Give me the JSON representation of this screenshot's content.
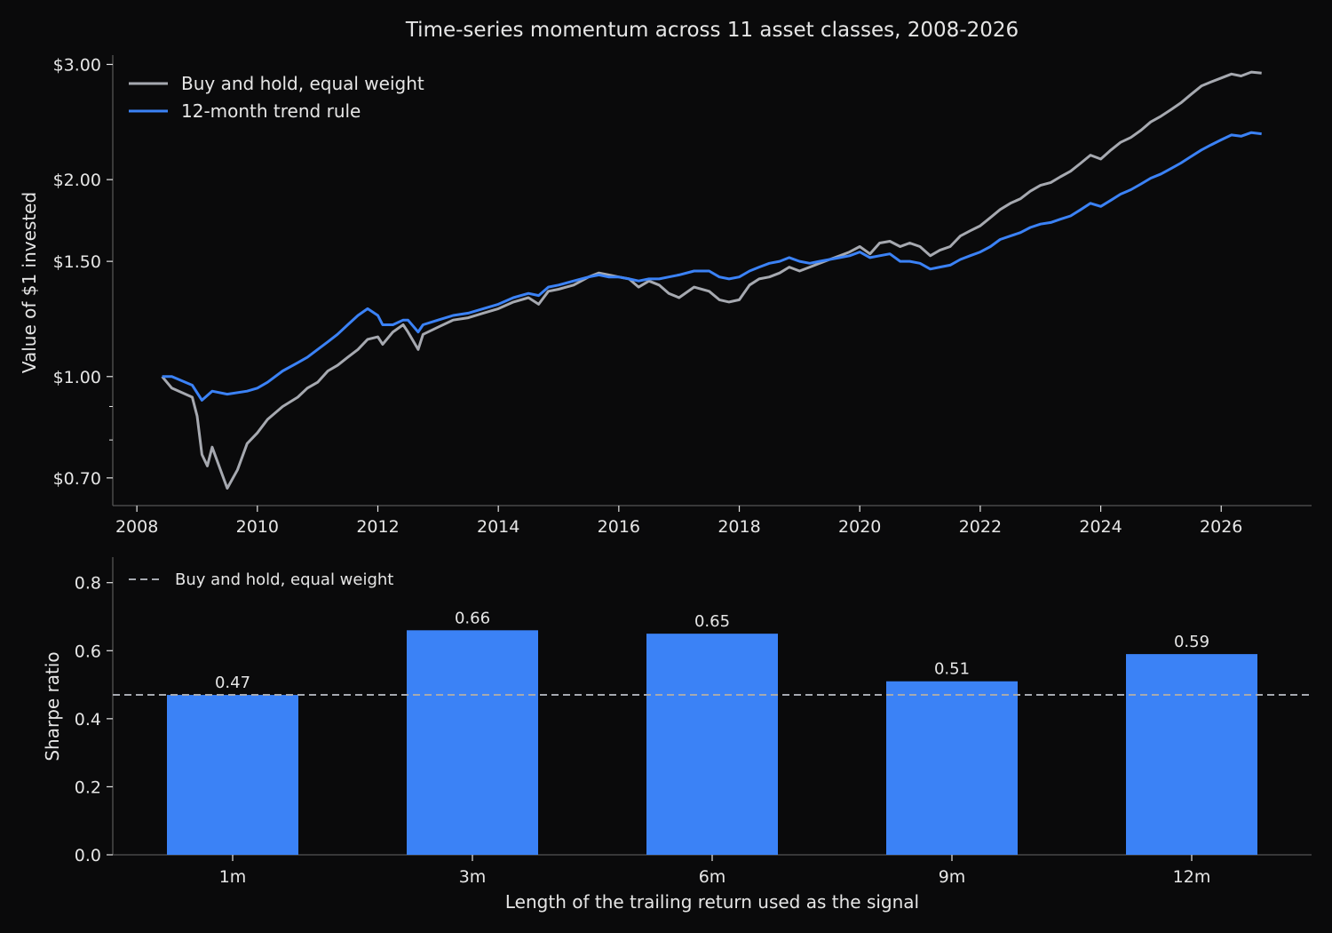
{
  "chart_data": [
    {
      "type": "line",
      "title": "Time-series momentum across 11 asset classes, 2008-2026",
      "ylabel": "Value of $1 invested",
      "xlabel": "",
      "yscale": "log",
      "xlim": [
        2007.6,
        2027.5
      ],
      "ylim": [
        0.635,
        3.1
      ],
      "xticks": [
        2008,
        2010,
        2012,
        2014,
        2016,
        2018,
        2020,
        2022,
        2024,
        2026
      ],
      "xtick_labels": [
        "2008",
        "2010",
        "2012",
        "2014",
        "2016",
        "2018",
        "2020",
        "2022",
        "2024",
        "2026"
      ],
      "yticks": [
        0.7,
        1.0,
        1.5,
        2.0,
        3.0
      ],
      "ytick_labels": [
        "$0.70",
        "$1.00",
        "$1.50",
        "$2.00",
        "$3.00"
      ],
      "minor_yticks": [
        0.8,
        0.9
      ],
      "grid": false,
      "legend_position": "top-left",
      "series": [
        {
          "name": "Buy and hold, equal weight",
          "color": "#a6a9b0",
          "points": [
            [
              2008.42,
              1.0
            ],
            [
              2008.58,
              0.96
            ],
            [
              2008.92,
              0.93
            ],
            [
              2009.0,
              0.87
            ],
            [
              2009.08,
              0.76
            ],
            [
              2009.17,
              0.73
            ],
            [
              2009.25,
              0.78
            ],
            [
              2009.5,
              0.675
            ],
            [
              2009.67,
              0.72
            ],
            [
              2009.83,
              0.79
            ],
            [
              2010.0,
              0.82
            ],
            [
              2010.17,
              0.86
            ],
            [
              2010.42,
              0.9
            ],
            [
              2010.67,
              0.93
            ],
            [
              2010.83,
              0.96
            ],
            [
              2011.0,
              0.98
            ],
            [
              2011.17,
              1.02
            ],
            [
              2011.33,
              1.04
            ],
            [
              2011.5,
              1.07
            ],
            [
              2011.67,
              1.1
            ],
            [
              2011.83,
              1.14
            ],
            [
              2012.0,
              1.15
            ],
            [
              2012.08,
              1.12
            ],
            [
              2012.25,
              1.17
            ],
            [
              2012.42,
              1.2
            ],
            [
              2012.5,
              1.17
            ],
            [
              2012.67,
              1.1
            ],
            [
              2012.75,
              1.16
            ],
            [
              2013.0,
              1.19
            ],
            [
              2013.25,
              1.22
            ],
            [
              2013.5,
              1.23
            ],
            [
              2013.75,
              1.25
            ],
            [
              2014.0,
              1.27
            ],
            [
              2014.25,
              1.3
            ],
            [
              2014.5,
              1.32
            ],
            [
              2014.67,
              1.29
            ],
            [
              2014.83,
              1.35
            ],
            [
              2015.0,
              1.36
            ],
            [
              2015.25,
              1.38
            ],
            [
              2015.5,
              1.42
            ],
            [
              2015.67,
              1.44
            ],
            [
              2015.83,
              1.43
            ],
            [
              2016.0,
              1.42
            ],
            [
              2016.17,
              1.41
            ],
            [
              2016.33,
              1.37
            ],
            [
              2016.5,
              1.4
            ],
            [
              2016.67,
              1.38
            ],
            [
              2016.83,
              1.34
            ],
            [
              2017.0,
              1.32
            ],
            [
              2017.25,
              1.37
            ],
            [
              2017.5,
              1.35
            ],
            [
              2017.67,
              1.31
            ],
            [
              2017.83,
              1.3
            ],
            [
              2018.0,
              1.31
            ],
            [
              2018.17,
              1.38
            ],
            [
              2018.33,
              1.41
            ],
            [
              2018.5,
              1.42
            ],
            [
              2018.67,
              1.44
            ],
            [
              2018.83,
              1.47
            ],
            [
              2019.0,
              1.45
            ],
            [
              2019.17,
              1.47
            ],
            [
              2019.33,
              1.49
            ],
            [
              2019.5,
              1.51
            ],
            [
              2019.67,
              1.53
            ],
            [
              2019.83,
              1.55
            ],
            [
              2020.0,
              1.58
            ],
            [
              2020.17,
              1.54
            ],
            [
              2020.33,
              1.6
            ],
            [
              2020.5,
              1.61
            ],
            [
              2020.67,
              1.58
            ],
            [
              2020.83,
              1.6
            ],
            [
              2021.0,
              1.58
            ],
            [
              2021.17,
              1.53
            ],
            [
              2021.33,
              1.56
            ],
            [
              2021.5,
              1.58
            ],
            [
              2021.67,
              1.64
            ],
            [
              2021.83,
              1.67
            ],
            [
              2022.0,
              1.7
            ],
            [
              2022.17,
              1.75
            ],
            [
              2022.33,
              1.8
            ],
            [
              2022.5,
              1.84
            ],
            [
              2022.67,
              1.87
            ],
            [
              2022.83,
              1.92
            ],
            [
              2023.0,
              1.96
            ],
            [
              2023.17,
              1.98
            ],
            [
              2023.33,
              2.02
            ],
            [
              2023.5,
              2.06
            ],
            [
              2023.67,
              2.12
            ],
            [
              2023.83,
              2.18
            ],
            [
              2024.0,
              2.15
            ],
            [
              2024.17,
              2.22
            ],
            [
              2024.33,
              2.28
            ],
            [
              2024.5,
              2.32
            ],
            [
              2024.67,
              2.38
            ],
            [
              2024.83,
              2.45
            ],
            [
              2025.0,
              2.5
            ],
            [
              2025.17,
              2.56
            ],
            [
              2025.33,
              2.62
            ],
            [
              2025.5,
              2.7
            ],
            [
              2025.67,
              2.78
            ],
            [
              2025.83,
              2.82
            ],
            [
              2026.0,
              2.86
            ],
            [
              2026.17,
              2.9
            ],
            [
              2026.33,
              2.88
            ],
            [
              2026.5,
              2.92
            ],
            [
              2026.67,
              2.91
            ]
          ]
        },
        {
          "name": "12-month trend rule",
          "color": "#3b82f6",
          "points": [
            [
              2008.42,
              1.0
            ],
            [
              2008.58,
              1.0
            ],
            [
              2008.92,
              0.97
            ],
            [
              2009.08,
              0.92
            ],
            [
              2009.25,
              0.95
            ],
            [
              2009.5,
              0.94
            ],
            [
              2009.83,
              0.95
            ],
            [
              2010.0,
              0.96
            ],
            [
              2010.17,
              0.98
            ],
            [
              2010.42,
              1.02
            ],
            [
              2010.67,
              1.05
            ],
            [
              2010.83,
              1.07
            ],
            [
              2011.0,
              1.1
            ],
            [
              2011.17,
              1.13
            ],
            [
              2011.33,
              1.16
            ],
            [
              2011.5,
              1.2
            ],
            [
              2011.67,
              1.24
            ],
            [
              2011.83,
              1.27
            ],
            [
              2012.0,
              1.24
            ],
            [
              2012.08,
              1.2
            ],
            [
              2012.25,
              1.2
            ],
            [
              2012.42,
              1.22
            ],
            [
              2012.5,
              1.22
            ],
            [
              2012.67,
              1.17
            ],
            [
              2012.75,
              1.2
            ],
            [
              2013.0,
              1.22
            ],
            [
              2013.25,
              1.24
            ],
            [
              2013.5,
              1.25
            ],
            [
              2013.75,
              1.27
            ],
            [
              2014.0,
              1.29
            ],
            [
              2014.25,
              1.32
            ],
            [
              2014.5,
              1.34
            ],
            [
              2014.67,
              1.33
            ],
            [
              2014.83,
              1.37
            ],
            [
              2015.0,
              1.38
            ],
            [
              2015.25,
              1.4
            ],
            [
              2015.5,
              1.42
            ],
            [
              2015.67,
              1.43
            ],
            [
              2015.83,
              1.42
            ],
            [
              2016.0,
              1.42
            ],
            [
              2016.17,
              1.41
            ],
            [
              2016.33,
              1.4
            ],
            [
              2016.5,
              1.41
            ],
            [
              2016.67,
              1.41
            ],
            [
              2016.83,
              1.42
            ],
            [
              2017.0,
              1.43
            ],
            [
              2017.25,
              1.45
            ],
            [
              2017.5,
              1.45
            ],
            [
              2017.67,
              1.42
            ],
            [
              2017.83,
              1.41
            ],
            [
              2018.0,
              1.42
            ],
            [
              2018.17,
              1.45
            ],
            [
              2018.33,
              1.47
            ],
            [
              2018.5,
              1.49
            ],
            [
              2018.67,
              1.5
            ],
            [
              2018.83,
              1.52
            ],
            [
              2019.0,
              1.5
            ],
            [
              2019.17,
              1.49
            ],
            [
              2019.33,
              1.5
            ],
            [
              2019.5,
              1.51
            ],
            [
              2019.67,
              1.52
            ],
            [
              2019.83,
              1.53
            ],
            [
              2020.0,
              1.55
            ],
            [
              2020.17,
              1.52
            ],
            [
              2020.33,
              1.53
            ],
            [
              2020.5,
              1.54
            ],
            [
              2020.67,
              1.5
            ],
            [
              2020.83,
              1.5
            ],
            [
              2021.0,
              1.49
            ],
            [
              2021.17,
              1.46
            ],
            [
              2021.33,
              1.47
            ],
            [
              2021.5,
              1.48
            ],
            [
              2021.67,
              1.51
            ],
            [
              2021.83,
              1.53
            ],
            [
              2022.0,
              1.55
            ],
            [
              2022.17,
              1.58
            ],
            [
              2022.33,
              1.62
            ],
            [
              2022.5,
              1.64
            ],
            [
              2022.67,
              1.66
            ],
            [
              2022.83,
              1.69
            ],
            [
              2023.0,
              1.71
            ],
            [
              2023.17,
              1.72
            ],
            [
              2023.33,
              1.74
            ],
            [
              2023.5,
              1.76
            ],
            [
              2023.67,
              1.8
            ],
            [
              2023.83,
              1.84
            ],
            [
              2024.0,
              1.82
            ],
            [
              2024.17,
              1.86
            ],
            [
              2024.33,
              1.9
            ],
            [
              2024.5,
              1.93
            ],
            [
              2024.67,
              1.97
            ],
            [
              2024.83,
              2.01
            ],
            [
              2025.0,
              2.04
            ],
            [
              2025.17,
              2.08
            ],
            [
              2025.33,
              2.12
            ],
            [
              2025.5,
              2.17
            ],
            [
              2025.67,
              2.22
            ],
            [
              2025.83,
              2.26
            ],
            [
              2026.0,
              2.3
            ],
            [
              2026.17,
              2.34
            ],
            [
              2026.33,
              2.33
            ],
            [
              2026.5,
              2.36
            ],
            [
              2026.67,
              2.35
            ]
          ]
        }
      ]
    },
    {
      "type": "bar",
      "title": "",
      "xlabel": "Length of the trailing return used as the signal",
      "ylabel": "Sharpe ratio",
      "categories": [
        "1m",
        "3m",
        "6m",
        "9m",
        "12m"
      ],
      "values": [
        0.47,
        0.66,
        0.65,
        0.51,
        0.59
      ],
      "data_labels": [
        "0.47",
        "0.66",
        "0.65",
        "0.51",
        "0.59"
      ],
      "bar_color": "#3b82f6",
      "ylim": [
        0,
        0.875
      ],
      "yticks": [
        0.0,
        0.2,
        0.4,
        0.6,
        0.8
      ],
      "ytick_labels": [
        "0.0",
        "0.2",
        "0.4",
        "0.6",
        "0.8"
      ],
      "reference_line": {
        "name": "Buy and hold, equal weight",
        "value": 0.47,
        "color": "#a6a9b0",
        "style": "dashed"
      },
      "grid": false,
      "legend_position": "top-left"
    }
  ]
}
